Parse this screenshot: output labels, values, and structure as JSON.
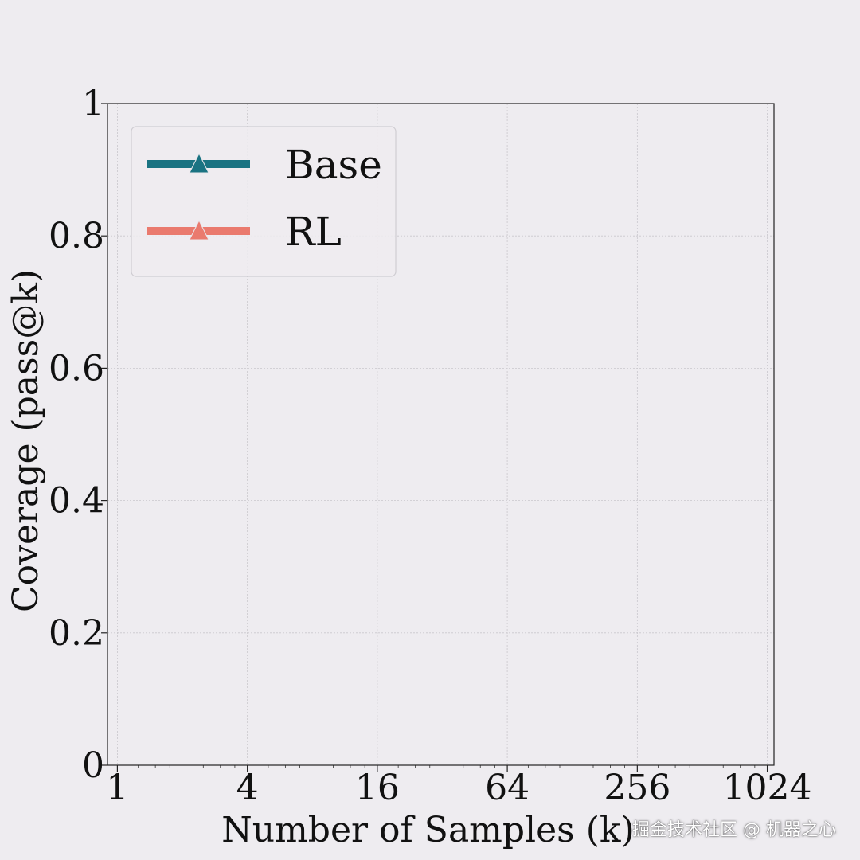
{
  "chart_data": {
    "type": "line",
    "xlabel": "Number of Samples (k)",
    "ylabel": "Coverage (pass@k)",
    "x_scale": "log2",
    "xlim": [
      0.9,
      1100
    ],
    "ylim": [
      0,
      1
    ],
    "x_ticks": [
      1,
      4,
      16,
      64,
      256,
      1024
    ],
    "x_tick_labels": [
      "1",
      "4",
      "16",
      "64",
      "256",
      "1024"
    ],
    "y_ticks": [
      0,
      0.2,
      0.4,
      0.6,
      0.8,
      1
    ],
    "y_tick_labels": [
      "0",
      "0.2",
      "0.4",
      "0.6",
      "0.8",
      "1"
    ],
    "grid": true,
    "legend_position": "upper-left",
    "series": [
      {
        "name": "Base",
        "color": "#1a7382",
        "marker": "triangle",
        "x": [],
        "y": []
      },
      {
        "name": "RL",
        "color": "#ea7a6e",
        "marker": "triangle",
        "x": [],
        "y": []
      }
    ]
  },
  "watermark": "掘金技术社区 @ 机器之心"
}
